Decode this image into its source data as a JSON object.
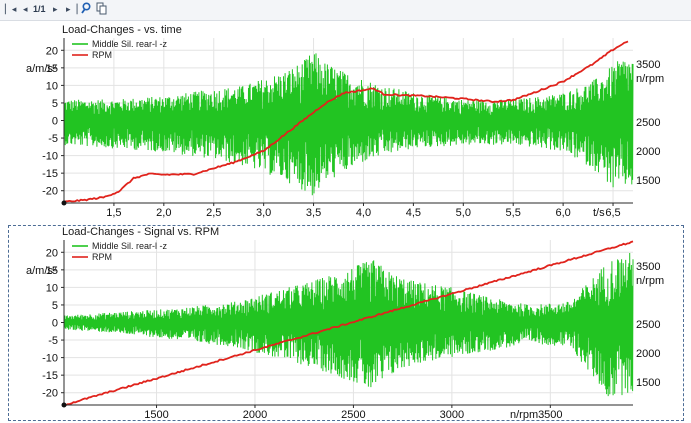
{
  "toolbar": {
    "first_icon": "first-page-icon",
    "prev_icon": "previous-page-icon",
    "page_indicator": "1/1",
    "next_icon": "next-page-icon",
    "last_icon": "last-page-icon",
    "zoom_icon": "zoom-icon",
    "copy_icon": "copy-icon"
  },
  "colors": {
    "signal": "#22c422",
    "rpm": "#e0231c",
    "selection_frame": "#4d6d96"
  },
  "chart_data": [
    {
      "type": "line",
      "title": "Load-Changes - vs. time",
      "xlabel": "t/s",
      "ylabel_left": "a/m/s²",
      "ylabel_right": "n/rpm",
      "xlim": [
        1.0,
        6.7
      ],
      "ylim_left": [
        -23.5,
        23.5
      ],
      "ylim_right": [
        1100,
        3950
      ],
      "xticks": [
        1.5,
        2.0,
        2.5,
        3.0,
        3.5,
        4.0,
        4.5,
        5.0,
        5.5,
        6.0,
        6.5
      ],
      "xtick_labels": [
        "1,5",
        "2,0",
        "2,5",
        "3,0",
        "3,5",
        "4,0",
        "4,5",
        "5,0",
        "5,5",
        "6,0",
        "6,5"
      ],
      "yticks_left": [
        20,
        15,
        10,
        5,
        0,
        -5,
        -10,
        -15,
        -20
      ],
      "ytick_labels_left": [
        "20",
        "15",
        "10",
        "5",
        "0",
        "-5",
        "-10",
        "-15",
        "-20"
      ],
      "yticks_right": [
        3500,
        3000,
        2500,
        2000,
        1500
      ],
      "ytick_labels_right": [
        "3500",
        "",
        "2500",
        "2000",
        "1500"
      ],
      "legend": {
        "position": "top-left",
        "entries": [
          "Middle Sil. rear-l -z",
          "RPM"
        ]
      },
      "series": [
        {
          "name": "Middle Sil. rear-l -z",
          "axis": "left",
          "style": "oscillating-envelope",
          "x": [
            1.0,
            1.5,
            2.0,
            2.5,
            2.8,
            3.0,
            3.2,
            3.4,
            3.5,
            3.6,
            3.8,
            4.0,
            4.2,
            4.5,
            5.0,
            5.5,
            5.8,
            6.0,
            6.2,
            6.4,
            6.5,
            6.6
          ],
          "upper": [
            6,
            6,
            7,
            9,
            10,
            12,
            14,
            17,
            20,
            17,
            14,
            12,
            10,
            8,
            6,
            6,
            7,
            8,
            10,
            13,
            16,
            18
          ],
          "lower": [
            -7,
            -8,
            -9,
            -11,
            -13,
            -15,
            -17,
            -20,
            -22,
            -18,
            -15,
            -12,
            -10,
            -8,
            -7,
            -7,
            -8,
            -9,
            -12,
            -16,
            -20,
            -19
          ]
        },
        {
          "name": "RPM",
          "axis": "right",
          "x": [
            1.0,
            1.2,
            1.4,
            1.55,
            1.7,
            1.85,
            2.0,
            2.3,
            2.5,
            2.7,
            3.0,
            3.3,
            3.6,
            3.8,
            4.0,
            4.1,
            4.2,
            4.4,
            4.6,
            5.0,
            5.3,
            5.5,
            5.7,
            6.0,
            6.3,
            6.5,
            6.65
          ],
          "y": [
            1120,
            1150,
            1200,
            1300,
            1530,
            1600,
            1590,
            1600,
            1700,
            1800,
            2000,
            2400,
            2800,
            3000,
            3050,
            3080,
            2980,
            2960,
            2950,
            2900,
            2850,
            2880,
            3000,
            3200,
            3500,
            3750,
            3900
          ]
        }
      ]
    },
    {
      "type": "line",
      "title": "Load-Changes - Signal vs. RPM",
      "xlabel": "n/rpm",
      "ylabel_left": "a/m/s²",
      "ylabel_right": "n/rpm",
      "xlim": [
        1030,
        3920
      ],
      "ylim_left": [
        -23.5,
        23.5
      ],
      "ylim_right": [
        1100,
        3950
      ],
      "xticks": [
        1500,
        2000,
        2500,
        3000,
        3500
      ],
      "xtick_labels": [
        "1500",
        "2000",
        "2500",
        "3000",
        "3500"
      ],
      "yticks_left": [
        20,
        15,
        10,
        5,
        0,
        -5,
        -10,
        -15,
        -20
      ],
      "ytick_labels_left": [
        "20",
        "15",
        "10",
        "5",
        "0",
        "-5",
        "-10",
        "-15",
        "-20"
      ],
      "yticks_right": [
        3500,
        3000,
        2500,
        2000,
        1500
      ],
      "ytick_labels_right": [
        "3500",
        "",
        "2500",
        "2000",
        "1500"
      ],
      "legend": {
        "position": "top-left",
        "entries": [
          "Middle Sil. rear-l -z",
          "RPM"
        ]
      },
      "series": [
        {
          "name": "Middle Sil. rear-l -z",
          "axis": "left",
          "style": "oscillating-envelope",
          "x": [
            1030,
            1300,
            1600,
            1900,
            2100,
            2300,
            2500,
            2600,
            2700,
            2800,
            3000,
            3200,
            3400,
            3600,
            3800,
            3900
          ],
          "upper": [
            2,
            3,
            4,
            6,
            9,
            12,
            16,
            18,
            14,
            12,
            10,
            7,
            5,
            6,
            18,
            20
          ],
          "lower": [
            -2,
            -3,
            -5,
            -7,
            -10,
            -13,
            -17,
            -20,
            -15,
            -12,
            -10,
            -8,
            -6,
            -7,
            -22,
            -20
          ]
        },
        {
          "name": "RPM",
          "axis": "right",
          "x": [
            1030,
            3920
          ],
          "y": [
            1100,
            3920
          ]
        }
      ]
    }
  ]
}
